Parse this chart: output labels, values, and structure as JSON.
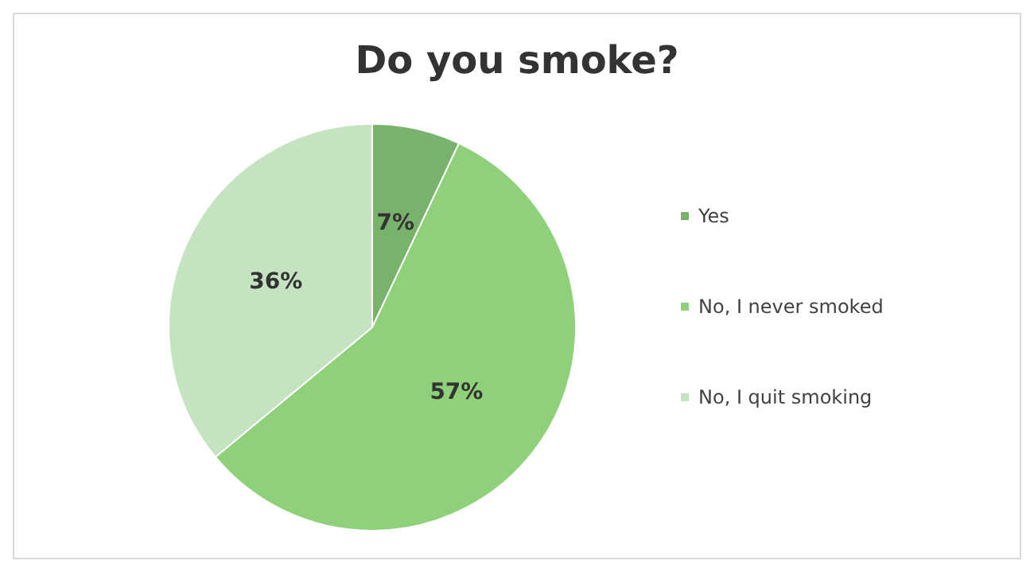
{
  "chart_data": {
    "type": "pie",
    "title": "Do you smoke?",
    "categories": [
      "Yes",
      "No, I never smoked",
      "No, I quit smoking"
    ],
    "values": [
      7,
      57,
      36
    ],
    "colors": [
      "#77b36a",
      "#8fd17a",
      "#c5e3c0"
    ],
    "value_labels": [
      "7%",
      "57%",
      "36%"
    ],
    "legend": "right"
  }
}
